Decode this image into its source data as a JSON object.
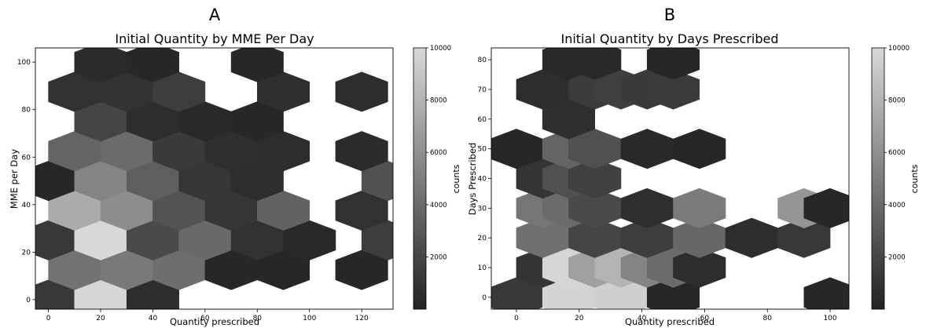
{
  "panels": [
    {
      "letter": "A",
      "chart_data": {
        "type": "heatmap",
        "subtype": "hexbin",
        "title": "Initial Quantity by MME Per Day",
        "xlabel": "Quantity prescribed",
        "ylabel": "MME per Day",
        "xlim": [
          -5,
          132
        ],
        "ylim": [
          -4,
          106
        ],
        "xticks": [
          "0",
          "20",
          "40",
          "60",
          "80",
          "100",
          "120"
        ],
        "yticks": [
          "0",
          "20",
          "40",
          "60",
          "80",
          "100"
        ],
        "hex_dx": 10,
        "hex_dy": 12.5,
        "colorbar": {
          "label": "counts",
          "min": 0,
          "max": 10000,
          "ticks": [
            "2000",
            "4000",
            "6000",
            "8000",
            "10000"
          ]
        },
        "bins": [
          {
            "x": 0,
            "y": 0,
            "c": 1200
          },
          {
            "x": 20,
            "y": 0,
            "c": 9900
          },
          {
            "x": 40,
            "y": 0,
            "c": 600
          },
          {
            "x": 10,
            "y": 12.5,
            "c": 4400
          },
          {
            "x": 30,
            "y": 12.5,
            "c": 4800
          },
          {
            "x": 50,
            "y": 12.5,
            "c": 4200
          },
          {
            "x": 70,
            "y": 12.5,
            "c": 300
          },
          {
            "x": 90,
            "y": 12.5,
            "c": 300
          },
          {
            "x": 120,
            "y": 12.5,
            "c": 300
          },
          {
            "x": 0,
            "y": 25,
            "c": 1200
          },
          {
            "x": 20,
            "y": 25,
            "c": 10000
          },
          {
            "x": 40,
            "y": 25,
            "c": 2200
          },
          {
            "x": 60,
            "y": 25,
            "c": 3900
          },
          {
            "x": 80,
            "y": 25,
            "c": 800
          },
          {
            "x": 100,
            "y": 25,
            "c": 400
          },
          {
            "x": 130,
            "y": 25,
            "c": 1500
          },
          {
            "x": 10,
            "y": 37.5,
            "c": 7500
          },
          {
            "x": 30,
            "y": 37.5,
            "c": 5800
          },
          {
            "x": 50,
            "y": 37.5,
            "c": 2700
          },
          {
            "x": 70,
            "y": 37.5,
            "c": 1100
          },
          {
            "x": 90,
            "y": 37.5,
            "c": 3500
          },
          {
            "x": 120,
            "y": 37.5,
            "c": 800
          },
          {
            "x": 0,
            "y": 50,
            "c": 300
          },
          {
            "x": 20,
            "y": 50,
            "c": 5400
          },
          {
            "x": 40,
            "y": 50,
            "c": 3300
          },
          {
            "x": 60,
            "y": 50,
            "c": 1100
          },
          {
            "x": 80,
            "y": 50,
            "c": 600
          },
          {
            "x": 130,
            "y": 50,
            "c": 2600
          },
          {
            "x": 10,
            "y": 62.5,
            "c": 3600
          },
          {
            "x": 30,
            "y": 62.5,
            "c": 4000
          },
          {
            "x": 50,
            "y": 62.5,
            "c": 1300
          },
          {
            "x": 70,
            "y": 62.5,
            "c": 700
          },
          {
            "x": 90,
            "y": 62.5,
            "c": 600
          },
          {
            "x": 120,
            "y": 62.5,
            "c": 500
          },
          {
            "x": 20,
            "y": 75,
            "c": 1900
          },
          {
            "x": 40,
            "y": 75,
            "c": 600
          },
          {
            "x": 60,
            "y": 75,
            "c": 400
          },
          {
            "x": 80,
            "y": 75,
            "c": 300
          },
          {
            "x": 10,
            "y": 87.5,
            "c": 800
          },
          {
            "x": 30,
            "y": 87.5,
            "c": 900
          },
          {
            "x": 50,
            "y": 87.5,
            "c": 1500
          },
          {
            "x": 90,
            "y": 87.5,
            "c": 700
          },
          {
            "x": 120,
            "y": 87.5,
            "c": 600
          },
          {
            "x": 20,
            "y": 100,
            "c": 500
          },
          {
            "x": 40,
            "y": 100,
            "c": 300
          },
          {
            "x": 80,
            "y": 100,
            "c": 300
          }
        ],
        "filler_value": 1100
      }
    },
    {
      "letter": "B",
      "chart_data": {
        "type": "heatmap",
        "subtype": "hexbin",
        "title": "Initial Quantity by Days Prescribed",
        "xlabel": "Quantity prescribed",
        "ylabel": "Days Prescribed",
        "xlim": [
          -8,
          106
        ],
        "ylim": [
          -4,
          84
        ],
        "xticks": [
          "0",
          "20",
          "40",
          "60",
          "80",
          "100"
        ],
        "yticks": [
          "0",
          "10",
          "20",
          "30",
          "40",
          "50",
          "60",
          "70",
          "80"
        ],
        "hex_dx": 8.33,
        "hex_dy": 10,
        "colorbar": {
          "label": "counts",
          "min": 0,
          "max": 10000,
          "ticks": [
            "2000",
            "4000",
            "6000",
            "8000",
            "10000"
          ]
        },
        "bins": [
          {
            "x": 0,
            "y": 0,
            "c": 1200
          },
          {
            "x": 16.67,
            "y": 0,
            "c": 9800
          },
          {
            "x": 33.33,
            "y": 0,
            "c": 9500
          },
          {
            "x": 50,
            "y": 0,
            "c": 300
          },
          {
            "x": 100,
            "y": 0,
            "c": 300
          },
          {
            "x": 8.33,
            "y": 10,
            "c": 1000
          },
          {
            "x": 16.67,
            "y": 10,
            "c": 9900
          },
          {
            "x": 25,
            "y": 10,
            "c": 6900
          },
          {
            "x": 33.33,
            "y": 10,
            "c": 8000
          },
          {
            "x": 41.67,
            "y": 10,
            "c": 5400
          },
          {
            "x": 50,
            "y": 10,
            "c": 4000
          },
          {
            "x": 58.33,
            "y": 10,
            "c": 600
          },
          {
            "x": 8.33,
            "y": 20,
            "c": 4300
          },
          {
            "x": 25,
            "y": 20,
            "c": 1900
          },
          {
            "x": 41.67,
            "y": 20,
            "c": 1500
          },
          {
            "x": 58.33,
            "y": 20,
            "c": 3800
          },
          {
            "x": 75,
            "y": 20,
            "c": 600
          },
          {
            "x": 91.67,
            "y": 20,
            "c": 1200
          },
          {
            "x": 8.33,
            "y": 30,
            "c": 4600
          },
          {
            "x": 16.67,
            "y": 30,
            "c": 4000
          },
          {
            "x": 25,
            "y": 30,
            "c": 2200
          },
          {
            "x": 41.67,
            "y": 30,
            "c": 700
          },
          {
            "x": 58.33,
            "y": 30,
            "c": 4900
          },
          {
            "x": 91.67,
            "y": 30,
            "c": 6300
          },
          {
            "x": 100,
            "y": 30,
            "c": 300
          },
          {
            "x": 8.33,
            "y": 40,
            "c": 1000
          },
          {
            "x": 16.67,
            "y": 40,
            "c": 2500
          },
          {
            "x": 25,
            "y": 40,
            "c": 1700
          },
          {
            "x": 0,
            "y": 50,
            "c": 300
          },
          {
            "x": 16.67,
            "y": 50,
            "c": 3600
          },
          {
            "x": 25,
            "y": 50,
            "c": 2500
          },
          {
            "x": 41.67,
            "y": 50,
            "c": 400
          },
          {
            "x": 58.33,
            "y": 50,
            "c": 300
          },
          {
            "x": 16.67,
            "y": 60,
            "c": 700
          },
          {
            "x": 8.33,
            "y": 70,
            "c": 600
          },
          {
            "x": 25,
            "y": 70,
            "c": 1400
          },
          {
            "x": 33.33,
            "y": 70,
            "c": 1600
          },
          {
            "x": 41.67,
            "y": 70,
            "c": 1300
          },
          {
            "x": 50,
            "y": 70,
            "c": 1400
          },
          {
            "x": 16.67,
            "y": 80,
            "c": 400
          },
          {
            "x": 25,
            "y": 80,
            "c": 400
          },
          {
            "x": 50,
            "y": 80,
            "c": 300
          }
        ],
        "filler_value": 1100
      }
    }
  ]
}
